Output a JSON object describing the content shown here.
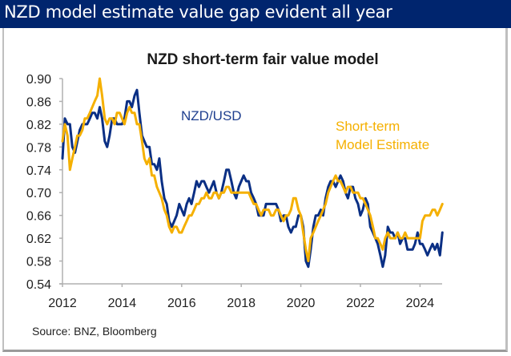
{
  "header": {
    "title": "NZD model estimate value gap evident all year"
  },
  "source": "Source: BNZ, Bloomberg",
  "colors": {
    "header_bg": "#00256e",
    "nzdusd": "#0a2f84",
    "model": "#f5b000"
  },
  "chart_data": {
    "type": "line",
    "title": "NZD short-term fair value model",
    "xlabel": "",
    "ylabel": "",
    "xlim": [
      2012,
      2024.75
    ],
    "ylim": [
      0.54,
      0.9
    ],
    "x_ticks": [
      "2012",
      "2014",
      "2016",
      "2018",
      "2020",
      "2022",
      "2024"
    ],
    "x_tick_values": [
      2012,
      2014,
      2016,
      2018,
      2020,
      2022,
      2024
    ],
    "y_ticks": [
      "0.90",
      "0.86",
      "0.82",
      "0.78",
      "0.74",
      "0.70",
      "0.66",
      "0.62",
      "0.58",
      "0.54"
    ],
    "y_tick_values": [
      0.9,
      0.86,
      0.82,
      0.78,
      0.74,
      0.7,
      0.66,
      0.62,
      0.58,
      0.54
    ],
    "grid": false,
    "legend": "inline labels (top-center, top-right)",
    "annotations": [
      {
        "text": "NZD/USD",
        "series": 0
      },
      {
        "text": "Short-term",
        "series": 1
      },
      {
        "text": "Model Estimate",
        "series": 1
      }
    ],
    "x": [
      2012.0,
      2012.08,
      2012.17,
      2012.25,
      2012.33,
      2012.42,
      2012.5,
      2012.58,
      2012.67,
      2012.75,
      2012.83,
      2012.92,
      2013.0,
      2013.08,
      2013.17,
      2013.25,
      2013.33,
      2013.42,
      2013.5,
      2013.58,
      2013.67,
      2013.75,
      2013.83,
      2013.92,
      2014.0,
      2014.08,
      2014.17,
      2014.25,
      2014.33,
      2014.42,
      2014.5,
      2014.58,
      2014.67,
      2014.75,
      2014.83,
      2014.92,
      2015.0,
      2015.08,
      2015.17,
      2015.25,
      2015.33,
      2015.42,
      2015.5,
      2015.58,
      2015.67,
      2015.75,
      2015.83,
      2015.92,
      2016.0,
      2016.08,
      2016.17,
      2016.25,
      2016.33,
      2016.42,
      2016.5,
      2016.58,
      2016.67,
      2016.75,
      2016.83,
      2016.92,
      2017.0,
      2017.08,
      2017.17,
      2017.25,
      2017.33,
      2017.42,
      2017.5,
      2017.58,
      2017.67,
      2017.75,
      2017.83,
      2017.92,
      2018.0,
      2018.08,
      2018.17,
      2018.25,
      2018.33,
      2018.42,
      2018.5,
      2018.58,
      2018.67,
      2018.75,
      2018.83,
      2018.92,
      2019.0,
      2019.08,
      2019.17,
      2019.25,
      2019.33,
      2019.42,
      2019.5,
      2019.58,
      2019.67,
      2019.75,
      2019.83,
      2019.92,
      2020.0,
      2020.08,
      2020.17,
      2020.25,
      2020.33,
      2020.42,
      2020.5,
      2020.58,
      2020.67,
      2020.75,
      2020.83,
      2020.92,
      2021.0,
      2021.08,
      2021.17,
      2021.25,
      2021.33,
      2021.42,
      2021.5,
      2021.58,
      2021.67,
      2021.75,
      2021.83,
      2021.92,
      2022.0,
      2022.08,
      2022.17,
      2022.25,
      2022.33,
      2022.42,
      2022.5,
      2022.58,
      2022.67,
      2022.75,
      2022.83,
      2022.92,
      2023.0,
      2023.08,
      2023.17,
      2023.25,
      2023.33,
      2023.42,
      2023.5,
      2023.58,
      2023.67,
      2023.75,
      2023.83,
      2023.92,
      2024.0,
      2024.08,
      2024.17,
      2024.25,
      2024.33,
      2024.42,
      2024.5,
      2024.58,
      2024.67,
      2024.75
    ],
    "series": [
      {
        "name": "NZD/USD",
        "color": "#0a2f84",
        "values": [
          0.76,
          0.83,
          0.82,
          0.82,
          0.78,
          0.77,
          0.79,
          0.81,
          0.82,
          0.82,
          0.82,
          0.83,
          0.84,
          0.84,
          0.83,
          0.85,
          0.83,
          0.79,
          0.78,
          0.8,
          0.83,
          0.83,
          0.82,
          0.82,
          0.82,
          0.83,
          0.86,
          0.86,
          0.85,
          0.87,
          0.88,
          0.84,
          0.8,
          0.79,
          0.78,
          0.78,
          0.75,
          0.75,
          0.74,
          0.76,
          0.72,
          0.69,
          0.68,
          0.65,
          0.64,
          0.65,
          0.66,
          0.68,
          0.67,
          0.66,
          0.68,
          0.69,
          0.68,
          0.7,
          0.72,
          0.71,
          0.72,
          0.72,
          0.71,
          0.7,
          0.71,
          0.72,
          0.7,
          0.69,
          0.7,
          0.72,
          0.74,
          0.74,
          0.72,
          0.7,
          0.69,
          0.71,
          0.72,
          0.73,
          0.72,
          0.72,
          0.7,
          0.69,
          0.68,
          0.66,
          0.66,
          0.66,
          0.68,
          0.68,
          0.68,
          0.68,
          0.68,
          0.67,
          0.65,
          0.66,
          0.66,
          0.64,
          0.63,
          0.64,
          0.64,
          0.66,
          0.66,
          0.64,
          0.58,
          0.57,
          0.6,
          0.64,
          0.66,
          0.66,
          0.67,
          0.66,
          0.69,
          0.71,
          0.72,
          0.72,
          0.71,
          0.72,
          0.73,
          0.72,
          0.7,
          0.69,
          0.71,
          0.71,
          0.69,
          0.68,
          0.66,
          0.67,
          0.69,
          0.68,
          0.64,
          0.63,
          0.62,
          0.61,
          0.59,
          0.57,
          0.59,
          0.64,
          0.63,
          0.63,
          0.62,
          0.63,
          0.61,
          0.62,
          0.62,
          0.6,
          0.6,
          0.6,
          0.61,
          0.63,
          0.61,
          0.61,
          0.6,
          0.59,
          0.6,
          0.61,
          0.6,
          0.61,
          0.59,
          0.63
        ]
      },
      {
        "name": "Short-term Model Estimate",
        "color": "#f5b000",
        "values": [
          0.79,
          0.82,
          0.8,
          0.74,
          0.76,
          0.78,
          0.8,
          0.8,
          0.81,
          0.83,
          0.83,
          0.84,
          0.85,
          0.86,
          0.87,
          0.9,
          0.87,
          0.83,
          0.82,
          0.83,
          0.83,
          0.82,
          0.84,
          0.84,
          0.83,
          0.82,
          0.84,
          0.85,
          0.84,
          0.84,
          0.82,
          0.82,
          0.79,
          0.76,
          0.75,
          0.76,
          0.73,
          0.73,
          0.71,
          0.7,
          0.69,
          0.67,
          0.66,
          0.64,
          0.63,
          0.64,
          0.64,
          0.63,
          0.63,
          0.64,
          0.65,
          0.66,
          0.66,
          0.67,
          0.68,
          0.68,
          0.69,
          0.69,
          0.7,
          0.69,
          0.69,
          0.7,
          0.7,
          0.69,
          0.7,
          0.7,
          0.71,
          0.71,
          0.7,
          0.7,
          0.7,
          0.7,
          0.7,
          0.7,
          0.7,
          0.7,
          0.69,
          0.68,
          0.68,
          0.67,
          0.66,
          0.67,
          0.67,
          0.67,
          0.66,
          0.66,
          0.67,
          0.67,
          0.66,
          0.65,
          0.66,
          0.66,
          0.67,
          0.69,
          0.69,
          0.67,
          0.66,
          0.63,
          0.6,
          0.58,
          0.62,
          0.63,
          0.64,
          0.65,
          0.66,
          0.67,
          0.68,
          0.7,
          0.71,
          0.72,
          0.73,
          0.72,
          0.72,
          0.71,
          0.7,
          0.71,
          0.71,
          0.7,
          0.7,
          0.7,
          0.69,
          0.69,
          0.68,
          0.67,
          0.66,
          0.64,
          0.62,
          0.62,
          0.61,
          0.6,
          0.62,
          0.63,
          0.62,
          0.62,
          0.62,
          0.63,
          0.62,
          0.62,
          0.63,
          0.62,
          0.62,
          0.62,
          0.62,
          0.62,
          0.62,
          0.65,
          0.66,
          0.66,
          0.66,
          0.67,
          0.67,
          0.66,
          0.67,
          0.68
        ]
      }
    ]
  }
}
